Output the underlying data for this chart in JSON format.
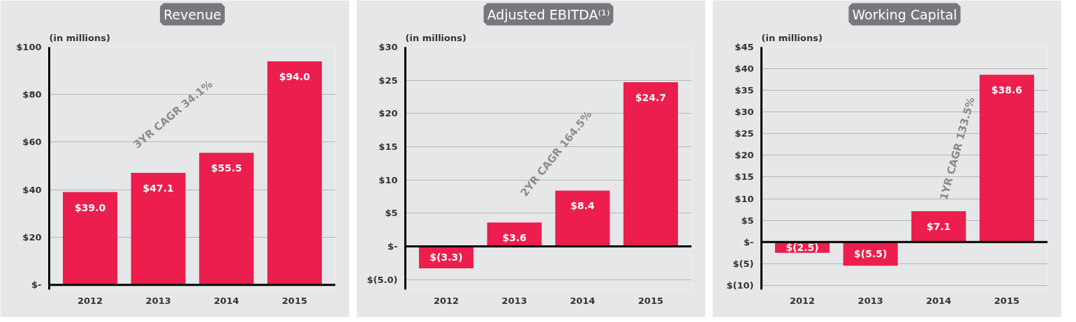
{
  "chart_data": [
    {
      "type": "bar",
      "title": "Revenue",
      "ylabel": "(in millions)",
      "categories": [
        "2012",
        "2013",
        "2014",
        "2015"
      ],
      "values": [
        39.0,
        47.1,
        55.5,
        94.0
      ],
      "color": "#eb1e4e",
      "value_labels": [
        "$39.0",
        "$47.1",
        "$55.5",
        "$94.0"
      ],
      "ylim": [
        -2,
        100
      ],
      "yticks": [
        {
          "value": 0,
          "label": "$-"
        },
        {
          "value": 20,
          "label": "$20"
        },
        {
          "value": 40,
          "label": "$40"
        },
        {
          "value": 60,
          "label": "$60"
        },
        {
          "value": 80,
          "label": "$80"
        },
        {
          "value": 100,
          "label": "$100"
        }
      ],
      "grid": "y",
      "annotations": [
        "3YR CAGR 34.1%"
      ]
    },
    {
      "type": "bar",
      "title": "Adjusted EBITDA⁽¹⁾",
      "ylabel": "(in millions)",
      "categories": [
        "2012",
        "2013",
        "2014",
        "2015"
      ],
      "values": [
        -3.3,
        3.6,
        8.4,
        24.7
      ],
      "color": "#eb1e4e",
      "value_labels": [
        "$(3.3)",
        "$3.6",
        "$8.4",
        "$24.7"
      ],
      "ylim": [
        -6.5,
        30
      ],
      "yticks": [
        {
          "value": -5,
          "label": "$(5.0)"
        },
        {
          "value": 0,
          "label": "$-"
        },
        {
          "value": 5,
          "label": "$5"
        },
        {
          "value": 10,
          "label": "$10"
        },
        {
          "value": 15,
          "label": "$15"
        },
        {
          "value": 20,
          "label": "$20"
        },
        {
          "value": 25,
          "label": "$25"
        },
        {
          "value": 30,
          "label": "$30"
        }
      ],
      "grid": "y",
      "annotations": [
        "2YR CAGR 164.5%"
      ]
    },
    {
      "type": "bar",
      "title": "Working Capital",
      "ylabel": "(in millions)",
      "categories": [
        "2012",
        "2013",
        "2014",
        "2015"
      ],
      "values": [
        -2.5,
        -5.5,
        7.1,
        38.6
      ],
      "color": "#eb1e4e",
      "value_labels": [
        "$(2.5)",
        "$(5.5)",
        "$7.1",
        "$38.6"
      ],
      "ylim": [
        -11,
        45
      ],
      "yticks": [
        {
          "value": -10,
          "label": "$(10)"
        },
        {
          "value": -5,
          "label": "$(5)"
        },
        {
          "value": 0,
          "label": "$-"
        },
        {
          "value": 5,
          "label": "$5"
        },
        {
          "value": 10,
          "label": "$10"
        },
        {
          "value": 15,
          "label": "$15"
        },
        {
          "value": 20,
          "label": "$20"
        },
        {
          "value": 25,
          "label": "$25"
        },
        {
          "value": 30,
          "label": "$30"
        },
        {
          "value": 35,
          "label": "$35"
        },
        {
          "value": 40,
          "label": "$40"
        },
        {
          "value": 45,
          "label": "$45"
        }
      ],
      "grid": "y",
      "annotations": [
        "1YR CAGR 133.5%"
      ]
    }
  ]
}
